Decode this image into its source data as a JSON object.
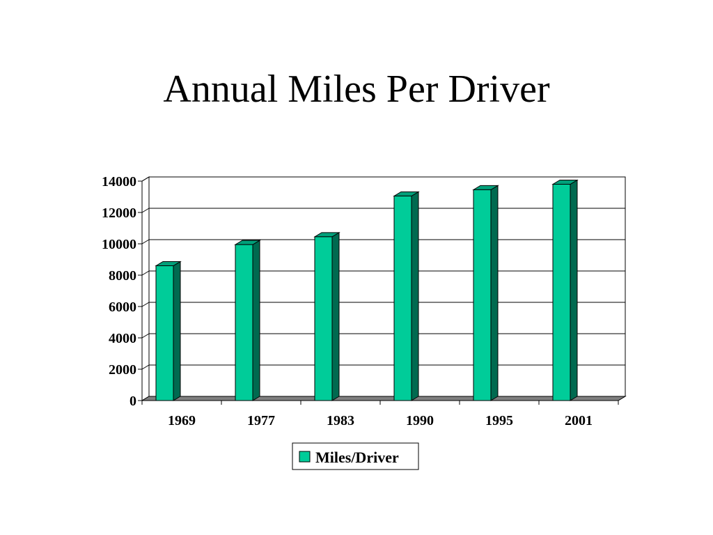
{
  "chart_data": {
    "type": "bar",
    "title": "Annual Miles Per Driver",
    "categories": [
      "1969",
      "1977",
      "1983",
      "1990",
      "1995",
      "2001"
    ],
    "series": [
      {
        "name": "Miles/Driver",
        "values": [
          8600,
          9950,
          10450,
          13050,
          13450,
          13800
        ]
      }
    ],
    "xlabel": "",
    "ylabel": "",
    "ylim": [
      0,
      14000
    ],
    "yticks": [
      0,
      2000,
      4000,
      6000,
      8000,
      10000,
      12000,
      14000
    ],
    "grid": true,
    "legend": "bottom",
    "colors": {
      "bar_front": "#00CC99",
      "bar_side": "#006A50",
      "bar_top": "#00A07A",
      "floor": "#808080"
    }
  }
}
